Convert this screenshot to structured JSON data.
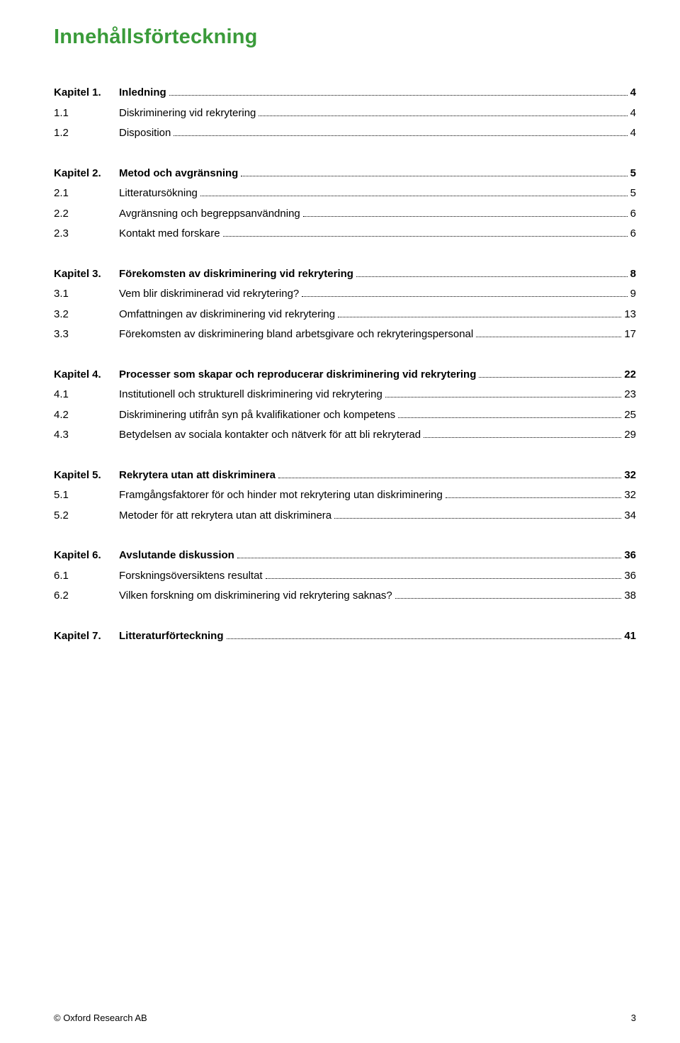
{
  "title": "Innehållsförteckning",
  "colors": {
    "accent": "#3a9b3a",
    "text": "#000000",
    "background": "#ffffff"
  },
  "toc": [
    {
      "chapter": {
        "num": "Kapitel 1.",
        "text": "Inledning",
        "page": "4"
      },
      "rows": [
        {
          "num": "1.1",
          "text": "Diskriminering vid rekrytering",
          "page": "4"
        },
        {
          "num": "1.2",
          "text": "Disposition",
          "page": "4"
        }
      ]
    },
    {
      "chapter": {
        "num": "Kapitel 2.",
        "text": "Metod och avgränsning",
        "page": "5"
      },
      "rows": [
        {
          "num": "2.1",
          "text": "Litteratursökning",
          "page": "5"
        },
        {
          "num": "2.2",
          "text": "Avgränsning och begreppsanvändning",
          "page": "6"
        },
        {
          "num": "2.3",
          "text": "Kontakt med forskare",
          "page": "6"
        }
      ]
    },
    {
      "chapter": {
        "num": "Kapitel 3.",
        "text": "Förekomsten av diskriminering vid rekrytering",
        "page": "8"
      },
      "rows": [
        {
          "num": "3.1",
          "text": "Vem blir diskriminerad vid rekrytering?",
          "page": "9"
        },
        {
          "num": "3.2",
          "text": "Omfattningen av diskriminering vid rekrytering",
          "page": "13"
        },
        {
          "num": "3.3",
          "text": "Förekomsten av diskriminering bland arbetsgivare och rekryteringspersonal",
          "page": "17"
        }
      ]
    },
    {
      "chapter": {
        "num": "Kapitel 4.",
        "text": "Processer som skapar och reproducerar diskriminering vid rekrytering",
        "page": "22"
      },
      "rows": [
        {
          "num": "4.1",
          "text": "Institutionell och strukturell diskriminering vid rekrytering",
          "page": "23"
        },
        {
          "num": "4.2",
          "text": "Diskriminering utifrån syn på kvalifikationer och kompetens",
          "page": "25"
        },
        {
          "num": "4.3",
          "text": "Betydelsen av sociala kontakter och nätverk för att bli rekryterad",
          "page": "29"
        }
      ]
    },
    {
      "chapter": {
        "num": "Kapitel 5.",
        "text": "Rekrytera utan att diskriminera",
        "page": "32"
      },
      "rows": [
        {
          "num": "5.1",
          "text": "Framgångsfaktorer för och hinder mot rekrytering utan diskriminering",
          "page": "32"
        },
        {
          "num": "5.2",
          "text": "Metoder för att rekrytera utan att diskriminera",
          "page": "34"
        }
      ]
    },
    {
      "chapter": {
        "num": "Kapitel 6.",
        "text": "Avslutande diskussion",
        "page": "36"
      },
      "rows": [
        {
          "num": "6.1",
          "text": "Forskningsöversiktens resultat",
          "page": "36"
        },
        {
          "num": "6.2",
          "text": "Vilken forskning om diskriminering vid rekrytering saknas?",
          "page": "38"
        }
      ]
    },
    {
      "chapter": {
        "num": "Kapitel 7.",
        "text": "Litteraturförteckning",
        "page": "41"
      },
      "rows": []
    }
  ],
  "footer": {
    "copyright": "© Oxford Research AB",
    "page_number": "3"
  }
}
